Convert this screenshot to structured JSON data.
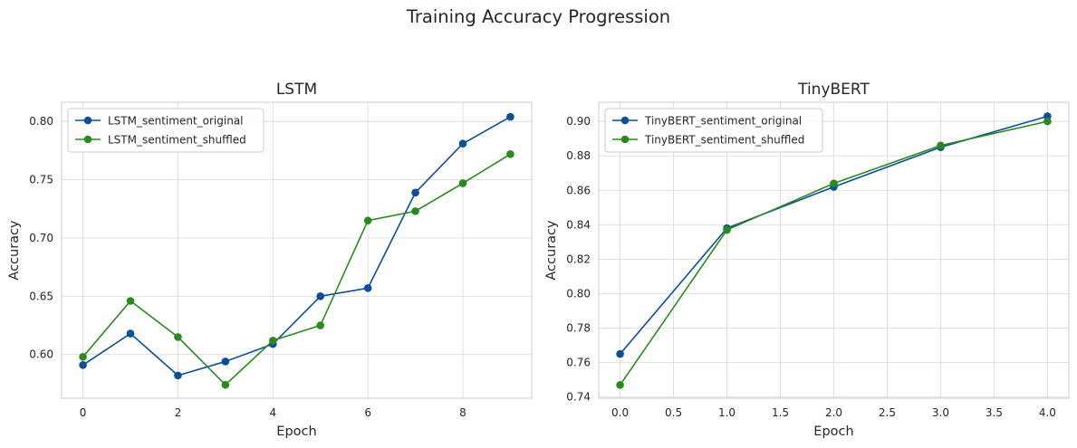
{
  "figure": {
    "title": "Training Accuracy Progression"
  },
  "colors": {
    "series1": "#0b4f9c",
    "series2": "#2b8a1e",
    "grid": "#dcdcdc",
    "spine": "#cccccc"
  },
  "chart_data": [
    {
      "type": "line",
      "title": "LSTM",
      "xlabel": "Epoch",
      "ylabel": "Accuracy",
      "xlim": [
        -0.45,
        9.45
      ],
      "ylim": [
        0.5625,
        0.8165
      ],
      "xticks": [
        0,
        2,
        4,
        6,
        8
      ],
      "xtick_labels": [
        "0",
        "2",
        "4",
        "6",
        "8"
      ],
      "yticks": [
        0.6,
        0.65,
        0.7,
        0.75,
        0.8
      ],
      "ytick_labels": [
        "0.60",
        "0.65",
        "0.70",
        "0.75",
        "0.80"
      ],
      "grid": true,
      "legend": "upper-left",
      "x": [
        0,
        1,
        2,
        3,
        4,
        5,
        6,
        7,
        8,
        9
      ],
      "series": [
        {
          "name": "LSTM_sentiment_original",
          "color": "#0b4f9c",
          "values": [
            0.591,
            0.618,
            0.582,
            0.594,
            0.609,
            0.65,
            0.657,
            0.739,
            0.781,
            0.804
          ]
        },
        {
          "name": "LSTM_sentiment_shuffled",
          "color": "#2b8a1e",
          "values": [
            0.598,
            0.646,
            0.615,
            0.574,
            0.612,
            0.625,
            0.715,
            0.723,
            0.747,
            0.772
          ]
        }
      ]
    },
    {
      "type": "line",
      "title": "TinyBERT",
      "xlabel": "Epoch",
      "ylabel": "Accuracy",
      "xlim": [
        -0.2,
        4.2
      ],
      "ylim": [
        0.7393,
        0.9111
      ],
      "xticks": [
        0,
        0.5,
        1,
        1.5,
        2,
        2.5,
        3,
        3.5,
        4
      ],
      "xtick_labels": [
        "0.0",
        "0.5",
        "1.0",
        "1.5",
        "2.0",
        "2.5",
        "3.0",
        "3.5",
        "4.0"
      ],
      "yticks": [
        0.74,
        0.76,
        0.78,
        0.8,
        0.82,
        0.84,
        0.86,
        0.88,
        0.9
      ],
      "ytick_labels": [
        "0.74",
        "0.76",
        "0.78",
        "0.80",
        "0.82",
        "0.84",
        "0.86",
        "0.88",
        "0.90"
      ],
      "grid": true,
      "legend": "upper-left",
      "x": [
        0,
        1,
        2,
        3,
        4
      ],
      "series": [
        {
          "name": "TinyBERT_sentiment_original",
          "color": "#0b4f9c",
          "values": [
            0.765,
            0.838,
            0.862,
            0.885,
            0.903
          ]
        },
        {
          "name": "TinyBERT_sentiment_shuffled",
          "color": "#2b8a1e",
          "values": [
            0.747,
            0.837,
            0.864,
            0.886,
            0.9
          ]
        }
      ]
    }
  ]
}
